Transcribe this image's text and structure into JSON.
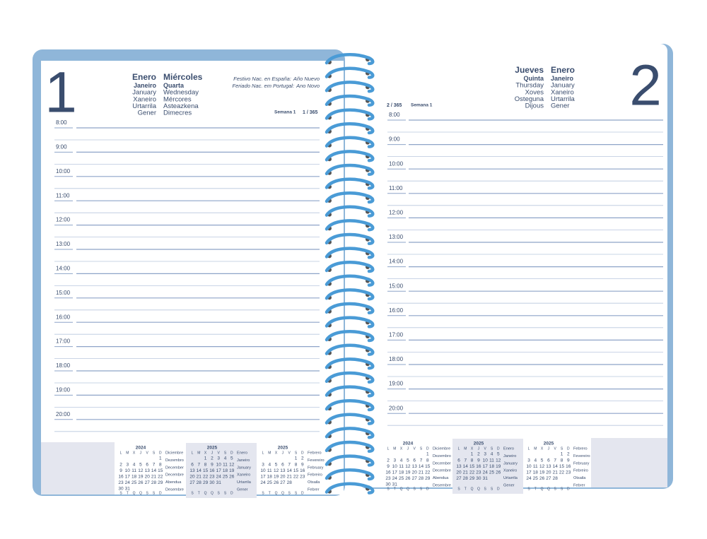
{
  "pages": [
    {
      "day": "1",
      "headings": [
        [
          "Enero",
          "Miércoles"
        ],
        [
          "Janeiro",
          "Quarta"
        ],
        [
          "January",
          "Wednesday"
        ],
        [
          "Xaneiro",
          "Mércores"
        ],
        [
          "Urtarrila",
          "Asteazkena"
        ],
        [
          "Gener",
          "Dimecres"
        ]
      ],
      "holidays": [
        {
          "label": "Festivo Nac. en España:",
          "name": "Año Nuevo"
        },
        {
          "label": "Feriado Nac. em Portugal:",
          "name": "Ano Novo"
        }
      ],
      "week": "Semana 1",
      "day_of_year": "1 / 365",
      "hours": [
        "8:00",
        "9:00",
        "10:00",
        "11:00",
        "12:00",
        "13:00",
        "14:00",
        "15:00",
        "16:00",
        "17:00",
        "18:00",
        "19:00",
        "20:00"
      ]
    },
    {
      "day": "2",
      "headings": [
        [
          "Jueves",
          "Enero"
        ],
        [
          "Quinta",
          "Janeiro"
        ],
        [
          "Thursday",
          "January"
        ],
        [
          "Xoves",
          "Xaneiro"
        ],
        [
          "Osteguna",
          "Urtarrila"
        ],
        [
          "Dijous",
          "Gener"
        ]
      ],
      "week": "Semana 1",
      "day_of_year": "2 / 365",
      "hours": [
        "8:00",
        "9:00",
        "10:00",
        "11:00",
        "12:00",
        "13:00",
        "14:00",
        "15:00",
        "16:00",
        "17:00",
        "18:00",
        "19:00",
        "20:00"
      ]
    }
  ],
  "weekday_initials": [
    "L",
    "M",
    "X",
    "J",
    "V",
    "S",
    "D"
  ],
  "weekday_initials_pt": [
    "S",
    "T",
    "Q",
    "Q",
    "S",
    "S",
    "D"
  ],
  "mini_calendars": [
    {
      "year": "2024",
      "weeks": [
        [
          null,
          null,
          null,
          null,
          null,
          null,
          1
        ],
        [
          2,
          3,
          4,
          5,
          6,
          7,
          8
        ],
        [
          9,
          10,
          11,
          12,
          13,
          14,
          15
        ],
        [
          16,
          17,
          18,
          19,
          20,
          21,
          22
        ],
        [
          23,
          24,
          25,
          26,
          27,
          28,
          29
        ],
        [
          30,
          31,
          null,
          null,
          null,
          null,
          null
        ]
      ],
      "month_names": [
        "Diciembre",
        "Dezembro",
        "December",
        "Decembre",
        "Abendua",
        "Desembre"
      ]
    },
    {
      "year": "2025",
      "weeks": [
        [
          null,
          null,
          1,
          2,
          3,
          4,
          5
        ],
        [
          6,
          7,
          8,
          9,
          10,
          11,
          12
        ],
        [
          13,
          14,
          15,
          16,
          17,
          18,
          19
        ],
        [
          20,
          21,
          22,
          23,
          24,
          25,
          26
        ],
        [
          27,
          28,
          29,
          30,
          31,
          null,
          null
        ]
      ],
      "month_names": [
        "Enero",
        "Janeiro",
        "January",
        "Xaneiro",
        "Urtarrila",
        "Gener"
      ]
    },
    {
      "year": "2025",
      "weeks": [
        [
          null,
          null,
          null,
          null,
          null,
          1,
          2
        ],
        [
          3,
          4,
          5,
          6,
          7,
          8,
          9
        ],
        [
          10,
          11,
          12,
          13,
          14,
          15,
          16
        ],
        [
          17,
          18,
          19,
          20,
          21,
          22,
          23
        ],
        [
          24,
          25,
          26,
          27,
          28,
          null,
          null
        ]
      ],
      "month_names": [
        "Febrero",
        "Fevereiro",
        "February",
        "Febreiro",
        "Otsaila",
        "Febrer"
      ]
    }
  ]
}
